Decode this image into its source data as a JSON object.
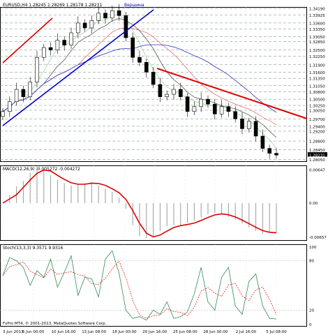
{
  "chart_data": {
    "type": "line",
    "header": {
      "title": "EURUSD,H4  1.28245  1.28269  1.28178  1.28231",
      "annotation": "Вершина"
    },
    "price_axis": {
      "ticks": [
        "1.34190",
        "1.33925",
        "1.33600",
        "1.33350",
        "1.33050",
        "1.32850",
        "1.32500",
        "1.32250",
        "1.31900",
        "1.31600",
        "1.31350",
        "1.31050",
        "1.30800",
        "1.30500",
        "1.30250",
        "1.30050",
        "1.29700",
        "1.29400",
        "1.29200",
        "1.28800",
        "1.28450",
        "1.28231",
        "1.28050"
      ],
      "current": "1.28231",
      "ylim": [
        1.2795,
        1.3425
      ]
    },
    "macd": {
      "label": "MACD(12,26,9) -0.005272 -0.004272",
      "ticks": [
        "0.00647",
        "0.00",
        "-0.00657"
      ]
    },
    "stoch": {
      "label": "Stoch(13,3,3) 9.3571 9.9316",
      "ticks": [
        "100",
        "80",
        "20",
        "0"
      ],
      "watermark": "FxPro MT4, © 2001-2013, MetaQuotes Software Corp."
    },
    "x_axis": {
      "ticks": [
        "3 Jun 2013",
        "6 Jun 00:00",
        "10 Jun 16:00",
        "13 Jun 08:00",
        "18 Jun 00:00",
        "20 Jun 16:00",
        "25 Jun 08:00",
        "28 Jun 00:00",
        "2 Jul 16:00",
        "5 Jul 08:00"
      ]
    },
    "series": [
      {
        "name": "close",
        "values": [
          1.3,
          1.304,
          1.309,
          1.306,
          1.312,
          1.322,
          1.326,
          1.325,
          1.329,
          1.327,
          1.332,
          1.336,
          1.334,
          1.337,
          1.34,
          1.338,
          1.341,
          1.339,
          1.33,
          1.322,
          1.32,
          1.316,
          1.311,
          1.306,
          1.307,
          1.309,
          1.306,
          1.3,
          1.302,
          1.305,
          1.303,
          1.299,
          1.302,
          1.3,
          1.297,
          1.293,
          1.296,
          1.29,
          1.285,
          1.283,
          1.2823
        ]
      },
      {
        "name": "macd",
        "values": [
          0.0,
          0.0015,
          0.003,
          0.004,
          0.0055,
          0.0066,
          0.0058,
          0.005,
          0.0042,
          0.0036,
          0.0032,
          0.0034,
          0.0036,
          0.0038,
          0.0032,
          0.0026,
          0.002,
          0.001,
          -0.001,
          -0.004,
          -0.006,
          -0.0063,
          -0.006,
          -0.005,
          -0.0042,
          -0.004,
          -0.004,
          -0.0036,
          -0.0032,
          -0.0026,
          -0.002,
          -0.0018,
          -0.002,
          -0.0025,
          -0.003,
          -0.0037,
          -0.0044,
          -0.005,
          -0.0055,
          -0.0053,
          -0.0053
        ]
      },
      {
        "name": "stoch_main",
        "values": [
          62,
          84,
          80,
          72,
          50,
          68,
          60,
          82,
          48,
          66,
          86,
          38,
          60,
          58,
          36,
          82,
          92,
          65,
          20,
          10,
          12,
          8,
          20,
          15,
          30,
          10,
          12,
          18,
          40,
          72,
          30,
          20,
          60,
          72,
          25,
          15,
          55,
          64,
          25,
          10,
          9.36
        ]
      }
    ]
  }
}
